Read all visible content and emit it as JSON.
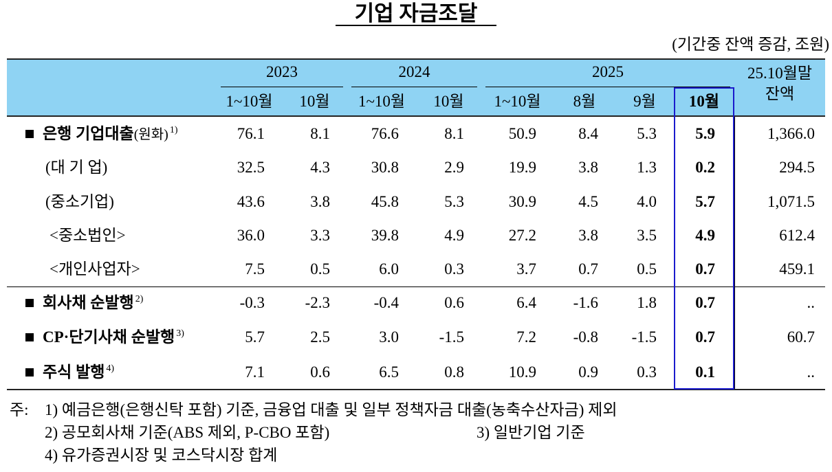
{
  "title": "기업 자금조달",
  "unit": "(기간중 잔액 증감, 조원)",
  "header": {
    "years": [
      "2023",
      "2024",
      "2025"
    ],
    "balance": [
      "25.10월말",
      "잔액"
    ],
    "subheaders": [
      "1~10월",
      "10월",
      "1~10월",
      "10월",
      "1~10월",
      "8월",
      "9월",
      "10월"
    ]
  },
  "rows": [
    {
      "label": "은행 기업대출",
      "qualifier": "(원화)",
      "note": "1)",
      "values": [
        "76.1",
        "8.1",
        "76.6",
        "8.1",
        "50.9",
        "8.4",
        "5.3",
        "5.9"
      ],
      "balance": "1,366.0"
    },
    {
      "label": "(대 기 업)",
      "values": [
        "32.5",
        "4.3",
        "30.8",
        "2.9",
        "19.9",
        "3.8",
        "1.3",
        "0.2"
      ],
      "balance": "294.5"
    },
    {
      "label": "(중소기업)",
      "values": [
        "43.6",
        "3.8",
        "45.8",
        "5.3",
        "30.9",
        "4.5",
        "4.0",
        "5.7"
      ],
      "balance": "1,071.5"
    },
    {
      "label": "<중소법인>",
      "values": [
        "36.0",
        "3.3",
        "39.8",
        "4.9",
        "27.2",
        "3.8",
        "3.5",
        "4.9"
      ],
      "balance": "612.4"
    },
    {
      "label": "<개인사업자>",
      "values": [
        "7.5",
        "0.5",
        "6.0",
        "0.3",
        "3.7",
        "0.7",
        "0.5",
        "0.7"
      ],
      "balance": "459.1"
    },
    {
      "label": "회사채 순발행",
      "note": "2)",
      "values": [
        "-0.3",
        "-2.3",
        "-0.4",
        "0.6",
        "6.4",
        "-1.6",
        "1.8",
        "0.7"
      ],
      "balance": ".."
    },
    {
      "label": "CP·단기사채 순발행",
      "note": "3)",
      "values": [
        "5.7",
        "2.5",
        "3.0",
        "-1.5",
        "7.2",
        "-0.8",
        "-1.5",
        "0.7"
      ],
      "balance": "60.7"
    },
    {
      "label": "주식 발행",
      "note": "4)",
      "values": [
        "7.1",
        "0.6",
        "6.5",
        "0.8",
        "10.9",
        "0.9",
        "0.3",
        "0.1"
      ],
      "balance": ".."
    }
  ],
  "notes": {
    "prefix": "주:",
    "items": [
      "1) 예금은행(은행신탁 포함) 기준, 금융업 대출 및 일부 정책자금 대출(농축수산자금) 제외",
      "2) 공모회사채 기준(ABS 제외, P-CBO 포함)",
      "3) 일반기업 기준",
      "4) 유가증권시장 및 코스닥시장 합계"
    ]
  }
}
